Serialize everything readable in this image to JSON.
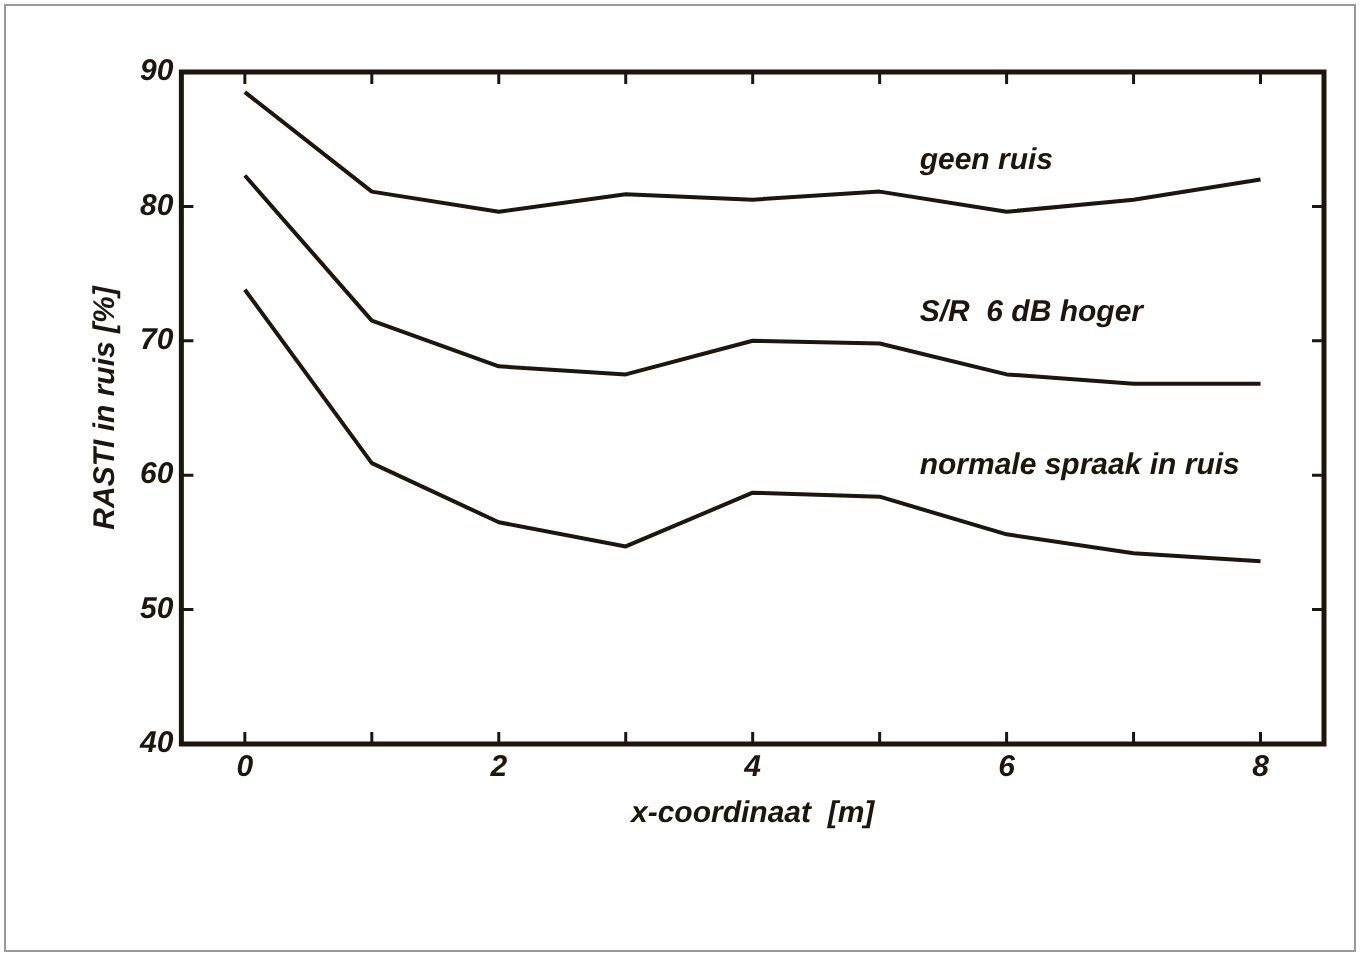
{
  "chart_data": {
    "type": "line",
    "xlabel": "x-coordinaat  [m]",
    "ylabel": "RASTI in ruis [%]",
    "x": [
      0,
      1,
      2,
      3,
      4,
      5,
      6,
      7,
      8
    ],
    "series": [
      {
        "name": "geen ruis",
        "color": "#1e160c",
        "values": [
          88.5,
          81.1,
          79.6,
          80.9,
          80.5,
          81.1,
          79.6,
          80.5,
          82.0
        ]
      },
      {
        "name": "S/R  6 dB hoger",
        "color": "#1e160c",
        "values": [
          82.3,
          71.5,
          68.1,
          67.5,
          70.0,
          69.8,
          67.5,
          66.8,
          66.8
        ]
      },
      {
        "name": "normale spraak in ruis",
        "color": "#1e160c",
        "values": [
          73.8,
          60.9,
          56.5,
          54.7,
          58.7,
          58.4,
          55.6,
          54.2,
          53.6
        ]
      }
    ],
    "xlim": [
      -0.5,
      8.5
    ],
    "xticks": [
      0,
      {
        "value": 1,
        "label": null
      },
      2,
      {
        "value": 3,
        "label": null
      },
      4,
      {
        "value": 5,
        "label": null
      },
      6,
      {
        "value": 7,
        "label": null
      },
      8
    ],
    "ylim": [
      40,
      90
    ],
    "yticks": [
      40,
      50,
      60,
      70,
      80,
      90
    ],
    "grid": false,
    "legend": false,
    "marker": "none",
    "line_style": "solid"
  }
}
